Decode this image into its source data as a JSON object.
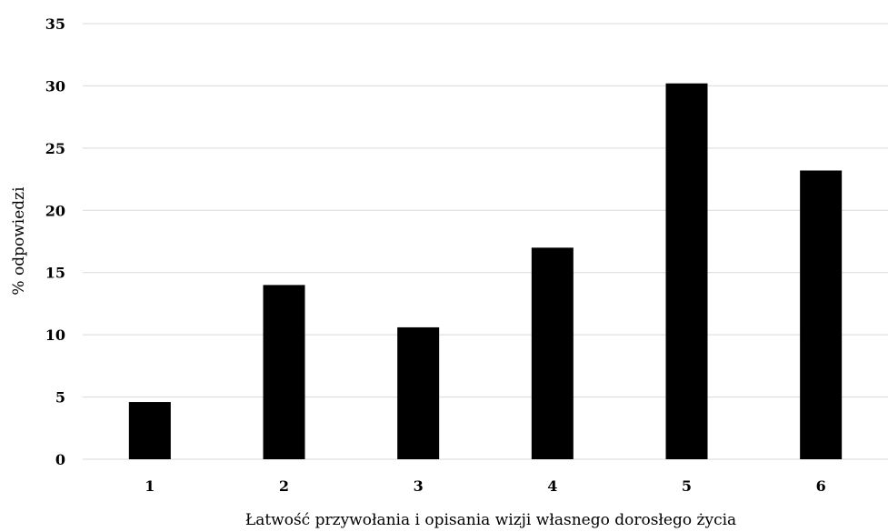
{
  "colors": {
    "bar": "#000000",
    "grid": "#d9d9d9",
    "background": "#ffffff",
    "text": "#000000"
  },
  "chart_data": {
    "type": "bar",
    "title": "",
    "xlabel": "Łatwość przywołania i opisania wizji własnego dorosłego życia",
    "ylabel": "% odpowiedzi",
    "categories": [
      "1",
      "2",
      "3",
      "4",
      "5",
      "6"
    ],
    "values": [
      4.6,
      14.0,
      10.6,
      17.0,
      30.2,
      23.2
    ],
    "ylim": [
      0,
      35
    ],
    "yticks": [
      "0",
      "5",
      "10",
      "15",
      "20",
      "25",
      "30",
      "35"
    ],
    "grid": "horizontal",
    "legend": "none"
  }
}
